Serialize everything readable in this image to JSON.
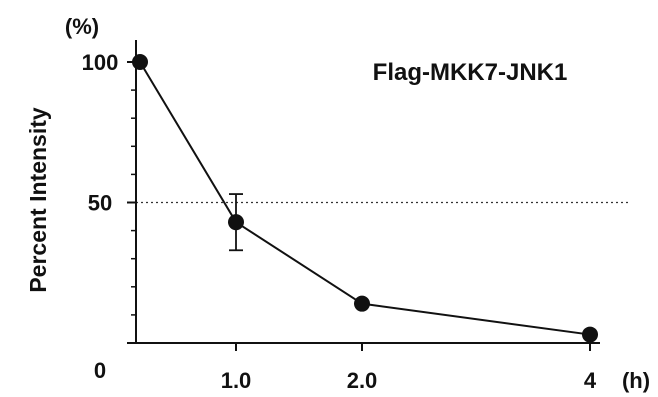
{
  "chart_data": {
    "type": "line",
    "title": "Flag-MKK7-JNK1",
    "xlabel": "(h)",
    "ylabel": "Percent Intensity",
    "y_unit": "(%)",
    "x": [
      0,
      1.0,
      2.0,
      4
    ],
    "x_tick_labels": [
      "0",
      "1.0",
      "2.0",
      "4"
    ],
    "y_ticks": [
      0,
      50,
      100
    ],
    "y_tick_labels": [
      "0",
      "50",
      "100"
    ],
    "ylim": [
      0,
      100
    ],
    "reference_line": {
      "y": 50,
      "style": "dotted"
    },
    "series": [
      {
        "values": [
          100,
          43,
          14,
          3
        ],
        "error": [
          0,
          10,
          0,
          0
        ],
        "color": "#111111"
      }
    ],
    "grid": false,
    "legend": "none"
  }
}
